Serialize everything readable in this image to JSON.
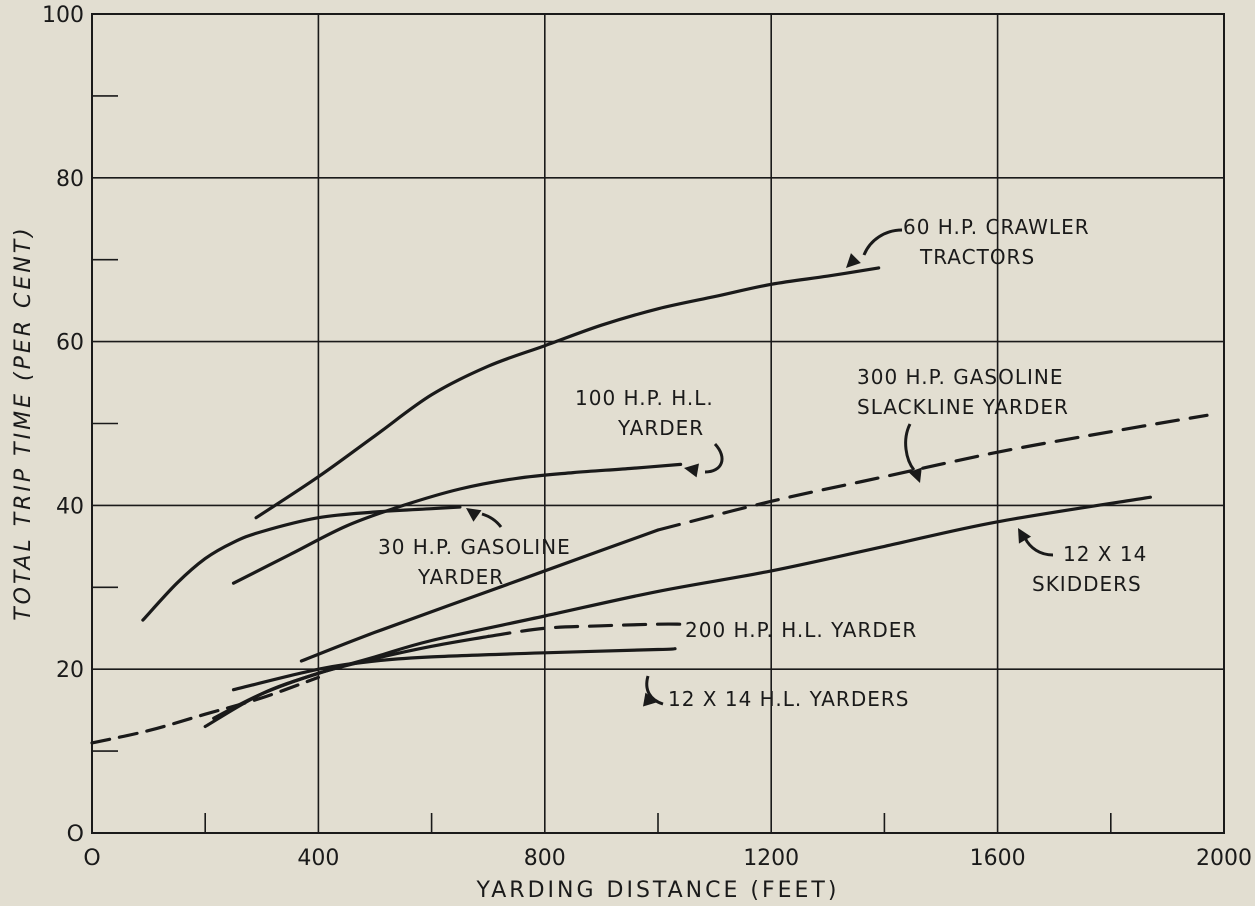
{
  "chart_data": {
    "type": "line",
    "title": "",
    "xlabel": "YARDING DISTANCE (FEET)",
    "ylabel": "TOTAL TRIP TIME (PER CENT)",
    "xlim": [
      0,
      2000
    ],
    "ylim": [
      0,
      100
    ],
    "xticks": [
      0,
      400,
      800,
      1200,
      1600,
      2000
    ],
    "yticks": [
      0,
      20,
      40,
      60,
      80,
      100
    ],
    "x_tick_labels": [
      "O",
      "400",
      "800",
      "1200",
      "1600",
      "2000"
    ],
    "y_tick_labels": [
      "O",
      "20",
      "40",
      "60",
      "80",
      "100"
    ],
    "grid": true,
    "series": [
      {
        "name": "60 H.P. CRAWLER TRACTORS",
        "style": "solid",
        "points": [
          [
            290,
            38.5
          ],
          [
            400,
            43.5
          ],
          [
            500,
            48.5
          ],
          [
            600,
            53.5
          ],
          [
            700,
            57
          ],
          [
            800,
            59.5
          ],
          [
            900,
            62
          ],
          [
            1000,
            64
          ],
          [
            1100,
            65.5
          ],
          [
            1200,
            67
          ],
          [
            1300,
            68
          ],
          [
            1390,
            69
          ]
        ]
      },
      {
        "name": "100 H.P. H.L. YARDER",
        "style": "solid",
        "points": [
          [
            250,
            30.5
          ],
          [
            350,
            34
          ],
          [
            450,
            37.5
          ],
          [
            550,
            40
          ],
          [
            650,
            42
          ],
          [
            750,
            43.3
          ],
          [
            850,
            44
          ],
          [
            950,
            44.5
          ],
          [
            1040,
            45
          ]
        ]
      },
      {
        "name": "30 H.P. GASOLINE YARDER",
        "style": "solid",
        "points": [
          [
            90,
            26
          ],
          [
            150,
            30.5
          ],
          [
            200,
            33.5
          ],
          [
            250,
            35.5
          ],
          [
            300,
            36.8
          ],
          [
            400,
            38.5
          ],
          [
            500,
            39.2
          ],
          [
            600,
            39.6
          ],
          [
            650,
            39.8
          ]
        ]
      },
      {
        "name": "300 H.P. GASOLINE SLACKLINE YARDER",
        "style": "solid-then-dashed",
        "dash_from_x": 1000,
        "points": [
          [
            370,
            21
          ],
          [
            500,
            24.5
          ],
          [
            700,
            29.5
          ],
          [
            900,
            34.5
          ],
          [
            1000,
            37
          ],
          [
            1200,
            40.5
          ],
          [
            1400,
            43.5
          ],
          [
            1600,
            46.5
          ],
          [
            1800,
            49
          ],
          [
            1970,
            51
          ]
        ]
      },
      {
        "name": "12 X 14 SKIDDERS",
        "style": "solid",
        "points": [
          [
            200,
            13
          ],
          [
            300,
            17
          ],
          [
            400,
            19.5
          ],
          [
            500,
            21.5
          ],
          [
            600,
            23.5
          ],
          [
            800,
            26.5
          ],
          [
            1000,
            29.5
          ],
          [
            1200,
            32
          ],
          [
            1400,
            35
          ],
          [
            1600,
            38
          ],
          [
            1870,
            41
          ]
        ]
      },
      {
        "name": "200 H.P. H.L. YARDER",
        "style": "solid-then-dashed",
        "dash_from_x": 700,
        "points": [
          [
            215,
            14
          ],
          [
            300,
            17
          ],
          [
            400,
            19.5
          ],
          [
            500,
            21.3
          ],
          [
            600,
            22.8
          ],
          [
            700,
            24
          ],
          [
            800,
            25
          ],
          [
            900,
            25.3
          ],
          [
            1000,
            25.5
          ],
          [
            1040,
            25.5
          ]
        ]
      },
      {
        "name": "12 X 14 H.L. YARDERS",
        "style": "solid",
        "points": [
          [
            250,
            17.5
          ],
          [
            400,
            20
          ],
          [
            500,
            21
          ],
          [
            600,
            21.5
          ],
          [
            800,
            22
          ],
          [
            1000,
            22.4
          ],
          [
            1030,
            22.5
          ]
        ]
      },
      {
        "name": "12 X 14 H.L. YARDERS (extension)",
        "style": "dashed",
        "points": [
          [
            0,
            11
          ],
          [
            100,
            12.5
          ],
          [
            200,
            14.5
          ],
          [
            300,
            16.5
          ],
          [
            400,
            19
          ]
        ]
      }
    ],
    "annotations": [
      {
        "lines": [
          "60 H.P. CRAWLER",
          "TRACTORS"
        ]
      },
      {
        "lines": [
          "100 H.P. H.L.",
          "YARDER"
        ]
      },
      {
        "lines": [
          "30 H.P. GASOLINE",
          "YARDER"
        ]
      },
      {
        "lines": [
          "300 H.P. GASOLINE",
          "SLACKLINE YARDER"
        ]
      },
      {
        "lines": [
          "12 X 14",
          "SKIDDERS"
        ]
      },
      {
        "lines": [
          "200 H.P. H.L. YARDER"
        ]
      },
      {
        "lines": [
          "12 X 14 H.L. YARDERS"
        ]
      }
    ]
  }
}
